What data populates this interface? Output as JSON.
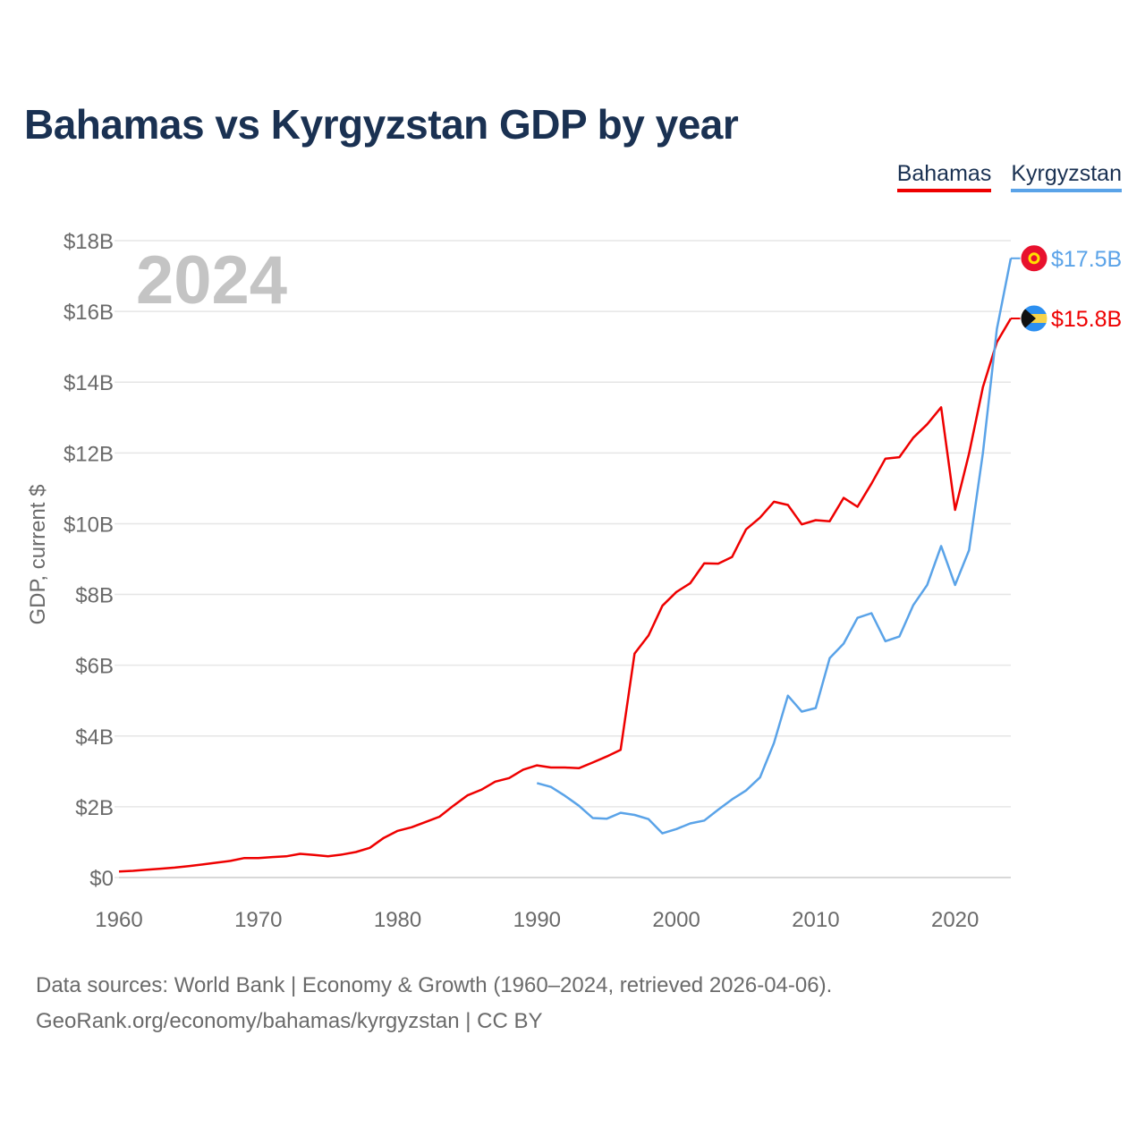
{
  "header": {
    "title": "Bahamas vs Kyrgyzstan GDP by year"
  },
  "legend": {
    "items": [
      "Bahamas",
      "Kyrgyzstan"
    ]
  },
  "footer": {
    "line1": "Data sources: World Bank | Economy & Growth (1960–2024, retrieved 2026-04-06).",
    "line2": "GeoRank.org/economy/bahamas/kyrgyzstan | CC BY"
  },
  "colors": {
    "bahamas": "#ee0000",
    "kyrgyzstan": "#5aa3e8",
    "grid": "#e6e6e6",
    "text": "#6a6a6a",
    "year": "#c4c4c4"
  },
  "chart_data": {
    "type": "line",
    "year_label": "2024",
    "ylabel": "GDP, current $",
    "xlim": [
      1960,
      2024
    ],
    "ylim": [
      0,
      18
    ],
    "x_ticks": [
      1960,
      1970,
      1980,
      1990,
      2000,
      2010,
      2020
    ],
    "y_ticks": [
      0,
      2,
      4,
      6,
      8,
      10,
      12,
      14,
      16,
      18
    ],
    "y_tick_labels": [
      "$0",
      "$2B",
      "$4B",
      "$6B",
      "$8B",
      "$10B",
      "$12B",
      "$14B",
      "$16B",
      "$18B"
    ],
    "series": [
      {
        "name": "Bahamas",
        "end_label": "$15.8B",
        "flag": "bahamas-flag",
        "x": [
          1960,
          1961,
          1962,
          1963,
          1964,
          1965,
          1966,
          1967,
          1968,
          1969,
          1970,
          1971,
          1972,
          1973,
          1974,
          1975,
          1976,
          1977,
          1978,
          1979,
          1980,
          1981,
          1982,
          1983,
          1984,
          1985,
          1986,
          1987,
          1988,
          1989,
          1990,
          1991,
          1992,
          1993,
          1994,
          1995,
          1996,
          1997,
          1998,
          1999,
          2000,
          2001,
          2002,
          2003,
          2004,
          2005,
          2006,
          2007,
          2008,
          2009,
          2010,
          2011,
          2012,
          2013,
          2014,
          2015,
          2016,
          2017,
          2018,
          2019,
          2020,
          2021,
          2022,
          2023,
          2024
        ],
        "values": [
          0.17,
          0.19,
          0.22,
          0.25,
          0.28,
          0.32,
          0.37,
          0.42,
          0.47,
          0.55,
          0.55,
          0.58,
          0.6,
          0.67,
          0.64,
          0.6,
          0.65,
          0.72,
          0.84,
          1.12,
          1.32,
          1.42,
          1.57,
          1.72,
          2.03,
          2.32,
          2.48,
          2.71,
          2.81,
          3.05,
          3.17,
          3.11,
          3.11,
          3.09,
          3.25,
          3.42,
          3.61,
          6.33,
          6.84,
          7.68,
          8.07,
          8.32,
          8.88,
          8.87,
          9.06,
          9.84,
          10.17,
          10.62,
          10.53,
          9.98,
          10.1,
          10.07,
          10.73,
          10.48,
          11.13,
          11.84,
          11.88,
          12.43,
          12.81,
          13.29,
          10.39,
          11.98,
          13.86,
          15.13,
          15.8
        ]
      },
      {
        "name": "Kyrgyzstan",
        "end_label": "$17.5B",
        "flag": "kyrgyzstan-flag",
        "x": [
          1990,
          1991,
          1992,
          1993,
          1994,
          1995,
          1996,
          1997,
          1998,
          1999,
          2000,
          2001,
          2002,
          2003,
          2004,
          2005,
          2006,
          2007,
          2008,
          2009,
          2010,
          2011,
          2012,
          2013,
          2014,
          2015,
          2016,
          2017,
          2018,
          2019,
          2020,
          2021,
          2022,
          2023,
          2024
        ],
        "values": [
          2.67,
          2.56,
          2.31,
          2.03,
          1.68,
          1.66,
          1.83,
          1.77,
          1.65,
          1.25,
          1.37,
          1.53,
          1.61,
          1.92,
          2.21,
          2.46,
          2.83,
          3.8,
          5.14,
          4.69,
          4.79,
          6.2,
          6.61,
          7.34,
          7.47,
          6.68,
          6.81,
          7.7,
          8.27,
          9.37,
          8.27,
          9.25,
          12.0,
          15.5,
          17.5
        ]
      }
    ]
  }
}
